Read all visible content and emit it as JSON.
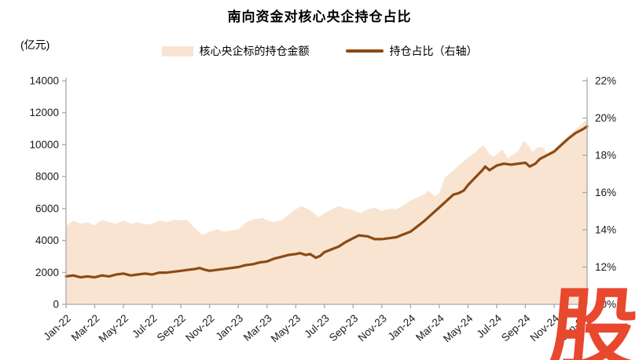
{
  "title": "南向资金对核心央企持仓占比",
  "legend": {
    "area_label": "核心央企标的持仓金额",
    "line_label": "持仓占比（右轴）"
  },
  "watermark": {
    "text": "股",
    "color": "#e8482e"
  },
  "left_axis": {
    "unit": "(亿元)",
    "tick_labels": [
      "0",
      "2000",
      "4000",
      "6000",
      "8000",
      "10000",
      "12000",
      "14000"
    ]
  },
  "right_axis": {
    "tick_labels": [
      "10%",
      "12%",
      "14%",
      "16%",
      "18%",
      "20%",
      "22%"
    ]
  },
  "x_axis": {
    "tick_labels": [
      "Jan-22",
      "Mar-22",
      "May-22",
      "Jul-22",
      "Sep-22",
      "Nov-22",
      "Jan-23",
      "Mar-23",
      "May-23",
      "Jul-23",
      "Sep-23",
      "Nov-23",
      "Jan-24",
      "Mar-24",
      "May-24",
      "Jul-24",
      "Sep-24",
      "Nov-24",
      "Jan-25"
    ]
  },
  "colors": {
    "area_fill": "#f9e4d2",
    "line": "#8b4a15",
    "axis": "#a8a8a8",
    "tick_text": "#1a1a1a",
    "watermark": "#e8482e"
  },
  "chart_data": {
    "type": "area+line",
    "title": "南向资金对核心央企持仓占比",
    "x_unit": "months since Jan-2022 (fractional = intra-month, data appears weekly)",
    "x_tick_labels": [
      "Jan-22",
      "Mar-22",
      "May-22",
      "Jul-22",
      "Sep-22",
      "Nov-22",
      "Jan-23",
      "Mar-23",
      "May-23",
      "Jul-23",
      "Sep-23",
      "Nov-23",
      "Jan-24",
      "Mar-24",
      "May-24",
      "Jul-24",
      "Sep-24",
      "Nov-24",
      "Jan-25"
    ],
    "x_tick_month_step": 2,
    "left_axis": {
      "label": "(亿元)",
      "ylim": [
        0,
        14000
      ],
      "tick_step": 2000
    },
    "right_axis": {
      "label": "持仓占比",
      "ylim": [
        10,
        22
      ],
      "tick_step": 2,
      "format": "percent"
    },
    "grid": false,
    "legend_position": "top",
    "series": [
      {
        "name": "核心央企标的持仓金额",
        "type": "area",
        "axis": "left",
        "unit": "亿元",
        "x": [
          0,
          0.5,
          1,
          1.5,
          2,
          2.5,
          3,
          3.5,
          4,
          4.5,
          5,
          5.5,
          6,
          6.5,
          7,
          7.5,
          8,
          8.4,
          9,
          9.5,
          10,
          10.5,
          11,
          11.5,
          12,
          12.5,
          13,
          13.7,
          14,
          14.4,
          15,
          15.5,
          16,
          16.4,
          17,
          17.6,
          18,
          18.5,
          19,
          19.5,
          20,
          20.5,
          21,
          21.5,
          22,
          22.6,
          23,
          23.5,
          24,
          24.5,
          25,
          25.2,
          25.7,
          26,
          26.4,
          27,
          27.5,
          28,
          28.5,
          28.8,
          29.1,
          29.5,
          29.8,
          30,
          30.4,
          30.8,
          31,
          31.5,
          31.9,
          32.2,
          32.5,
          32.8,
          33.2,
          33.5,
          34,
          34.5,
          35,
          35.5,
          36,
          36.3
        ],
        "values": [
          4900,
          5250,
          5050,
          5150,
          4950,
          5300,
          5150,
          5050,
          5250,
          5050,
          5150,
          5000,
          5050,
          5250,
          5150,
          5300,
          5250,
          5300,
          4750,
          4350,
          4550,
          4700,
          4550,
          4620,
          4700,
          5100,
          5300,
          5420,
          5250,
          5160,
          5250,
          5600,
          5950,
          6150,
          5900,
          5460,
          5700,
          5950,
          6150,
          6000,
          5900,
          5720,
          5950,
          6050,
          5850,
          6000,
          5950,
          6200,
          6500,
          6700,
          6900,
          7130,
          6780,
          6950,
          7950,
          8400,
          8800,
          9200,
          9500,
          9800,
          9950,
          9400,
          9250,
          9400,
          9700,
          9150,
          9300,
          9600,
          10250,
          9950,
          9550,
          9800,
          9850,
          9460,
          9700,
          10200,
          10550,
          10950,
          11350,
          11580
        ]
      },
      {
        "name": "持仓占比（右轴）",
        "type": "line",
        "axis": "right",
        "unit": "%",
        "x": [
          0,
          0.5,
          1,
          1.5,
          2,
          2.5,
          3,
          3.5,
          4,
          4.5,
          5,
          5.5,
          6,
          6.5,
          7,
          7.5,
          8,
          8.5,
          9,
          9.3,
          9.7,
          10,
          10.5,
          11,
          11.5,
          12,
          12.5,
          13,
          13.5,
          14,
          14.5,
          15,
          15.5,
          16,
          16.3,
          16.7,
          17,
          17.4,
          17.7,
          18,
          18.5,
          19,
          19.5,
          20,
          20.4,
          21,
          21.5,
          22,
          22.5,
          23,
          23.5,
          24,
          24.5,
          25,
          25.5,
          26,
          26.5,
          27,
          27.3,
          27.7,
          28,
          28.5,
          29,
          29.2,
          29.5,
          30,
          30.5,
          31,
          31.5,
          32,
          32.3,
          32.7,
          33,
          33.5,
          34,
          34.5,
          35,
          35.5,
          36,
          36.3
        ],
        "values": [
          11.5,
          11.55,
          11.45,
          11.5,
          11.45,
          11.55,
          11.5,
          11.6,
          11.65,
          11.55,
          11.6,
          11.65,
          11.6,
          11.7,
          11.7,
          11.75,
          11.8,
          11.85,
          11.9,
          11.95,
          11.85,
          11.8,
          11.85,
          11.9,
          11.95,
          12.0,
          12.1,
          12.15,
          12.25,
          12.3,
          12.45,
          12.55,
          12.65,
          12.7,
          12.75,
          12.65,
          12.7,
          12.5,
          12.6,
          12.8,
          12.95,
          13.1,
          13.35,
          13.55,
          13.7,
          13.65,
          13.5,
          13.5,
          13.55,
          13.6,
          13.75,
          13.9,
          14.2,
          14.5,
          14.85,
          15.2,
          15.55,
          15.9,
          15.95,
          16.1,
          16.4,
          16.8,
          17.2,
          17.4,
          17.2,
          17.45,
          17.55,
          17.5,
          17.55,
          17.6,
          17.4,
          17.55,
          17.8,
          18.0,
          18.2,
          18.55,
          18.9,
          19.2,
          19.4,
          19.55
        ]
      }
    ]
  }
}
